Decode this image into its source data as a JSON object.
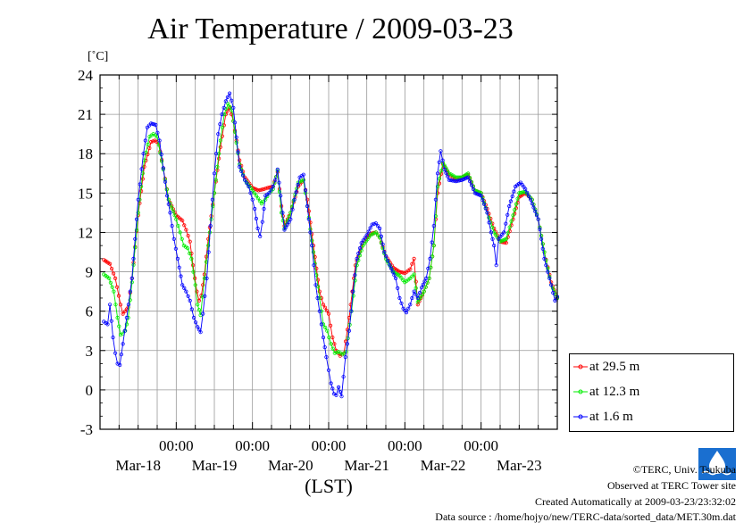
{
  "title": "Air Temperature / 2009-03-23",
  "unit": "[˚C]",
  "footer": {
    "copyright": "©TERC, Univ. Tsukuba",
    "observed": "Observed at TERC Tower site",
    "created": "Created Automatically at 2009-03-23/23:32:02",
    "source": "Data source : /home/hojyo/new/TERC-data/sorted_data/MET.30m.dat"
  },
  "logo_text": "TERC",
  "chart_data": {
    "type": "line",
    "title": "Air Temperature / 2009-03-23",
    "ylabel": "[˚C]",
    "xlabel": "(LST)",
    "ylim": [
      -3,
      24
    ],
    "yticks": [
      -3,
      0,
      3,
      6,
      9,
      12,
      15,
      18,
      21,
      24
    ],
    "xlim_days": [
      0,
      6
    ],
    "x_time_labels": [
      "00:00",
      "00:00",
      "00:00",
      "00:00",
      "00:00"
    ],
    "x_day_labels": [
      "Mar-18",
      "Mar-19",
      "Mar-20",
      "Mar-21",
      "Mar-22",
      "Mar-23"
    ],
    "grid": true,
    "legend_position": "bottom-right",
    "series": [
      {
        "name": "at 29.5 m",
        "color": "#ff0000",
        "points": [
          [
            0.05,
            9.9
          ],
          [
            0.13,
            9.6
          ],
          [
            0.2,
            8.5
          ],
          [
            0.27,
            6.5
          ],
          [
            0.3,
            5.8
          ],
          [
            0.33,
            6.0
          ],
          [
            0.37,
            6.3
          ],
          [
            0.42,
            8.5
          ],
          [
            0.5,
            13.3
          ],
          [
            0.58,
            17.0
          ],
          [
            0.67,
            18.9
          ],
          [
            0.72,
            19.0
          ],
          [
            0.77,
            18.8
          ],
          [
            0.83,
            16.9
          ],
          [
            0.9,
            14.5
          ],
          [
            1.0,
            13.3
          ],
          [
            1.08,
            12.9
          ],
          [
            1.13,
            12.2
          ],
          [
            1.18,
            11.3
          ],
          [
            1.22,
            9.5
          ],
          [
            1.27,
            7.5
          ],
          [
            1.3,
            6.8
          ],
          [
            1.33,
            7.2
          ],
          [
            1.37,
            8.8
          ],
          [
            1.42,
            11.5
          ],
          [
            1.5,
            15.0
          ],
          [
            1.58,
            18.5
          ],
          [
            1.65,
            21.0
          ],
          [
            1.7,
            21.5
          ],
          [
            1.75,
            20.5
          ],
          [
            1.83,
            17.5
          ],
          [
            1.9,
            16.2
          ],
          [
            2.0,
            15.4
          ],
          [
            2.08,
            15.2
          ],
          [
            2.15,
            15.3
          ],
          [
            2.2,
            15.4
          ],
          [
            2.27,
            15.5
          ],
          [
            2.33,
            16.6
          ],
          [
            2.38,
            14.0
          ],
          [
            2.42,
            12.5
          ],
          [
            2.5,
            13.5
          ],
          [
            2.6,
            15.5
          ],
          [
            2.67,
            16.0
          ],
          [
            2.72,
            14.5
          ],
          [
            2.8,
            11.0
          ],
          [
            2.88,
            7.5
          ],
          [
            2.93,
            6.5
          ],
          [
            3.0,
            5.8
          ],
          [
            3.05,
            4.0
          ],
          [
            3.1,
            3.0
          ],
          [
            3.15,
            2.6
          ],
          [
            3.2,
            2.8
          ],
          [
            3.27,
            5.5
          ],
          [
            3.35,
            9.5
          ],
          [
            3.45,
            11.2
          ],
          [
            3.55,
            11.9
          ],
          [
            3.62,
            12.0
          ],
          [
            3.67,
            11.6
          ],
          [
            3.75,
            10.2
          ],
          [
            3.85,
            9.3
          ],
          [
            3.93,
            9.0
          ],
          [
            4.0,
            8.9
          ],
          [
            4.07,
            9.2
          ],
          [
            4.12,
            10.0
          ],
          [
            4.17,
            6.5
          ],
          [
            4.25,
            7.5
          ],
          [
            4.32,
            8.5
          ],
          [
            4.38,
            11.0
          ],
          [
            4.43,
            15.0
          ],
          [
            4.5,
            17.2
          ],
          [
            4.58,
            16.4
          ],
          [
            4.67,
            16.0
          ],
          [
            4.75,
            16.2
          ],
          [
            4.83,
            16.4
          ],
          [
            4.92,
            15.2
          ],
          [
            5.0,
            15.0
          ],
          [
            5.08,
            13.8
          ],
          [
            5.17,
            12.3
          ],
          [
            5.25,
            11.3
          ],
          [
            5.33,
            11.2
          ],
          [
            5.42,
            13.0
          ],
          [
            5.5,
            14.7
          ],
          [
            5.58,
            15.0
          ],
          [
            5.67,
            14.5
          ],
          [
            5.75,
            13.0
          ],
          [
            5.83,
            10.5
          ],
          [
            5.92,
            8.2
          ],
          [
            6.0,
            7.0
          ]
        ]
      },
      {
        "name": "at 12.3 m",
        "color": "#00ee00",
        "points": [
          [
            0.05,
            8.8
          ],
          [
            0.12,
            8.5
          ],
          [
            0.18,
            7.5
          ],
          [
            0.23,
            5.5
          ],
          [
            0.27,
            4.2
          ],
          [
            0.3,
            4.3
          ],
          [
            0.33,
            4.5
          ],
          [
            0.37,
            5.5
          ],
          [
            0.42,
            8.2
          ],
          [
            0.5,
            13.5
          ],
          [
            0.58,
            17.5
          ],
          [
            0.65,
            19.3
          ],
          [
            0.7,
            19.5
          ],
          [
            0.75,
            19.3
          ],
          [
            0.83,
            16.8
          ],
          [
            0.9,
            14.5
          ],
          [
            1.0,
            13.0
          ],
          [
            1.05,
            12.0
          ],
          [
            1.1,
            11.0
          ],
          [
            1.15,
            10.8
          ],
          [
            1.2,
            10.0
          ],
          [
            1.25,
            8.0
          ],
          [
            1.28,
            6.5
          ],
          [
            1.32,
            5.7
          ],
          [
            1.37,
            8.5
          ],
          [
            1.42,
            11.0
          ],
          [
            1.5,
            15.0
          ],
          [
            1.58,
            19.0
          ],
          [
            1.63,
            21.0
          ],
          [
            1.68,
            21.8
          ],
          [
            1.73,
            21.3
          ],
          [
            1.83,
            17.2
          ],
          [
            1.9,
            16.0
          ],
          [
            2.0,
            15.2
          ],
          [
            2.05,
            14.8
          ],
          [
            2.12,
            14.2
          ],
          [
            2.17,
            14.5
          ],
          [
            2.22,
            15.0
          ],
          [
            2.27,
            15.3
          ],
          [
            2.33,
            16.7
          ],
          [
            2.38,
            13.5
          ],
          [
            2.42,
            12.3
          ],
          [
            2.5,
            13.5
          ],
          [
            2.6,
            15.8
          ],
          [
            2.67,
            16.0
          ],
          [
            2.72,
            14.0
          ],
          [
            2.8,
            10.5
          ],
          [
            2.88,
            7.0
          ],
          [
            2.93,
            5.0
          ],
          [
            2.98,
            4.5
          ],
          [
            3.03,
            3.5
          ],
          [
            3.08,
            2.8
          ],
          [
            3.13,
            2.9
          ],
          [
            3.18,
            2.7
          ],
          [
            3.23,
            2.9
          ],
          [
            3.3,
            6.0
          ],
          [
            3.37,
            9.5
          ],
          [
            3.45,
            11.0
          ],
          [
            3.55,
            11.8
          ],
          [
            3.62,
            12.0
          ],
          [
            3.67,
            11.6
          ],
          [
            3.75,
            10.0
          ],
          [
            3.85,
            9.0
          ],
          [
            3.93,
            8.7
          ],
          [
            4.0,
            8.2
          ],
          [
            4.07,
            8.5
          ],
          [
            4.12,
            8.8
          ],
          [
            4.17,
            6.7
          ],
          [
            4.25,
            7.5
          ],
          [
            4.32,
            8.5
          ],
          [
            4.38,
            11.0
          ],
          [
            4.43,
            15.5
          ],
          [
            4.5,
            17.3
          ],
          [
            4.58,
            16.5
          ],
          [
            4.67,
            16.2
          ],
          [
            4.75,
            16.2
          ],
          [
            4.83,
            16.5
          ],
          [
            4.92,
            15.2
          ],
          [
            5.0,
            15.0
          ],
          [
            5.08,
            13.5
          ],
          [
            5.17,
            12.0
          ],
          [
            5.25,
            11.3
          ],
          [
            5.33,
            11.5
          ],
          [
            5.42,
            13.3
          ],
          [
            5.5,
            15.0
          ],
          [
            5.58,
            15.1
          ],
          [
            5.67,
            14.5
          ],
          [
            5.75,
            13.0
          ],
          [
            5.83,
            10.5
          ],
          [
            5.92,
            8.0
          ],
          [
            6.0,
            7.0
          ]
        ]
      },
      {
        "name": "at 1.6 m",
        "color": "#0000ff",
        "points": [
          [
            0.05,
            5.2
          ],
          [
            0.1,
            5.0
          ],
          [
            0.13,
            6.5
          ],
          [
            0.17,
            4.0
          ],
          [
            0.2,
            2.8
          ],
          [
            0.23,
            2.0
          ],
          [
            0.26,
            1.9
          ],
          [
            0.3,
            3.5
          ],
          [
            0.35,
            5.5
          ],
          [
            0.42,
            8.5
          ],
          [
            0.5,
            14.5
          ],
          [
            0.57,
            18.0
          ],
          [
            0.62,
            20.0
          ],
          [
            0.67,
            20.3
          ],
          [
            0.73,
            20.2
          ],
          [
            0.78,
            19.0
          ],
          [
            0.83,
            16.9
          ],
          [
            0.88,
            14.8
          ],
          [
            0.92,
            13.5
          ],
          [
            0.97,
            11.5
          ],
          [
            1.02,
            10.0
          ],
          [
            1.08,
            8.0
          ],
          [
            1.13,
            7.5
          ],
          [
            1.18,
            6.8
          ],
          [
            1.23,
            5.5
          ],
          [
            1.28,
            4.8
          ],
          [
            1.32,
            4.4
          ],
          [
            1.35,
            5.8
          ],
          [
            1.4,
            8.5
          ],
          [
            1.45,
            12.5
          ],
          [
            1.5,
            16.5
          ],
          [
            1.55,
            19.5
          ],
          [
            1.6,
            21.0
          ],
          [
            1.65,
            22.0
          ],
          [
            1.7,
            22.6
          ],
          [
            1.75,
            21.5
          ],
          [
            1.83,
            17.0
          ],
          [
            1.9,
            16.0
          ],
          [
            1.95,
            15.5
          ],
          [
            2.0,
            14.5
          ],
          [
            2.03,
            13.8
          ],
          [
            2.07,
            12.3
          ],
          [
            2.1,
            11.7
          ],
          [
            2.13,
            12.8
          ],
          [
            2.17,
            14.8
          ],
          [
            2.22,
            15.0
          ],
          [
            2.27,
            15.5
          ],
          [
            2.3,
            16.0
          ],
          [
            2.33,
            16.8
          ],
          [
            2.37,
            14.8
          ],
          [
            2.42,
            12.2
          ],
          [
            2.5,
            13.0
          ],
          [
            2.55,
            14.5
          ],
          [
            2.62,
            16.2
          ],
          [
            2.67,
            16.4
          ],
          [
            2.72,
            14.0
          ],
          [
            2.78,
            11.0
          ],
          [
            2.83,
            8.0
          ],
          [
            2.88,
            6.0
          ],
          [
            2.93,
            4.0
          ],
          [
            2.97,
            2.5
          ],
          [
            3.0,
            1.5
          ],
          [
            3.03,
            0.5
          ],
          [
            3.07,
            -0.3
          ],
          [
            3.1,
            -0.4
          ],
          [
            3.13,
            0.2
          ],
          [
            3.17,
            -0.5
          ],
          [
            3.22,
            2.5
          ],
          [
            3.27,
            4.5
          ],
          [
            3.32,
            7.5
          ],
          [
            3.37,
            10.0
          ],
          [
            3.43,
            11.2
          ],
          [
            3.5,
            11.8
          ],
          [
            3.57,
            12.6
          ],
          [
            3.62,
            12.7
          ],
          [
            3.67,
            12.3
          ],
          [
            3.73,
            10.5
          ],
          [
            3.8,
            9.5
          ],
          [
            3.88,
            8.5
          ],
          [
            3.93,
            7.0
          ],
          [
            3.98,
            6.2
          ],
          [
            4.02,
            5.9
          ],
          [
            4.07,
            6.5
          ],
          [
            4.12,
            7.5
          ],
          [
            4.17,
            7.0
          ],
          [
            4.22,
            7.8
          ],
          [
            4.28,
            8.5
          ],
          [
            4.33,
            10.0
          ],
          [
            4.38,
            12.5
          ],
          [
            4.43,
            16.5
          ],
          [
            4.47,
            18.2
          ],
          [
            4.52,
            16.8
          ],
          [
            4.58,
            16.0
          ],
          [
            4.67,
            15.9
          ],
          [
            4.75,
            16.0
          ],
          [
            4.83,
            16.2
          ],
          [
            4.92,
            15.0
          ],
          [
            5.0,
            14.8
          ],
          [
            5.08,
            13.5
          ],
          [
            5.13,
            12.0
          ],
          [
            5.17,
            11.0
          ],
          [
            5.2,
            9.5
          ],
          [
            5.23,
            11.5
          ],
          [
            5.3,
            12.0
          ],
          [
            5.37,
            14.0
          ],
          [
            5.45,
            15.5
          ],
          [
            5.52,
            15.8
          ],
          [
            5.58,
            15.3
          ],
          [
            5.65,
            14.5
          ],
          [
            5.75,
            13.0
          ],
          [
            5.83,
            10.0
          ],
          [
            5.92,
            8.0
          ],
          [
            5.97,
            6.8
          ],
          [
            6.0,
            7.1
          ]
        ]
      }
    ]
  }
}
